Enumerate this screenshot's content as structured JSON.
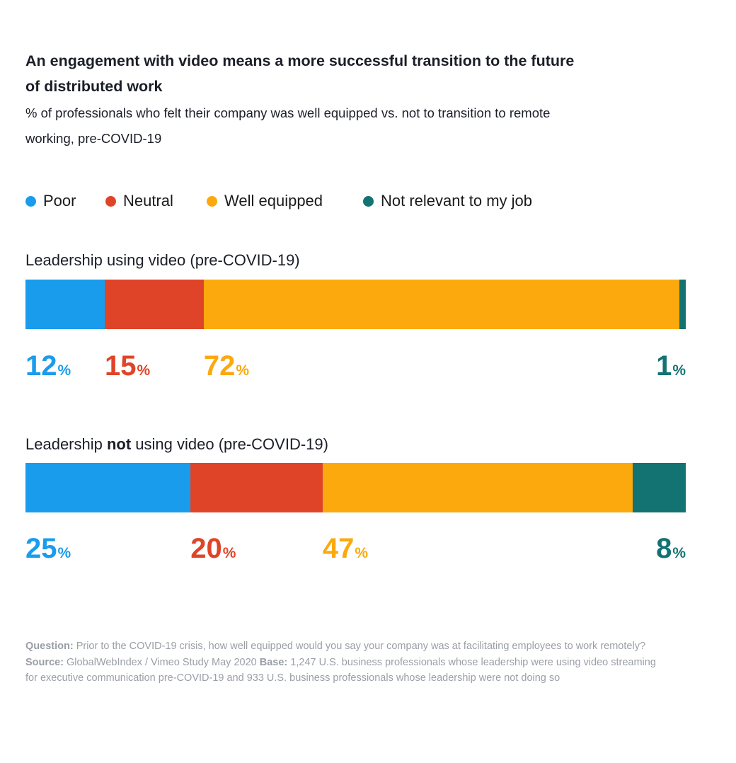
{
  "title": "An engagement with video means a more successful transition to the future of distributed work",
  "subtitle": "% of professionals who felt their company was well equipped vs. not to transition to remote working, pre-COVID-19",
  "legend": [
    {
      "label": "Poor",
      "color": "#1a9ced"
    },
    {
      "label": "Neutral",
      "color": "#e04428"
    },
    {
      "label": "Well equipped",
      "color": "#fba90d"
    },
    {
      "label": "Not relevant to my job",
      "color": "#137373"
    }
  ],
  "unit": "%",
  "groups": {
    "g0": {
      "label_pre": "Leadership using video (pre-COVID-19)",
      "label_strong": "",
      "label_post": ""
    },
    "g1": {
      "label_pre": "Leadership ",
      "label_strong": "not",
      "label_post": " using video (pre-COVID-19)"
    }
  },
  "chart_data": {
    "type": "bar",
    "orientation": "horizontal-stacked-100",
    "title": "An engagement with video means a more successful transition to the future of distributed work",
    "subtitle": "% of professionals who felt their company was well equipped vs. not to transition to remote working, pre-COVID-19",
    "categories": [
      "Leadership using video (pre-COVID-19)",
      "Leadership not using video (pre-COVID-19)"
    ],
    "series": [
      {
        "name": "Poor",
        "values": [
          12,
          25
        ],
        "color": "#1a9ced"
      },
      {
        "name": "Neutral",
        "values": [
          15,
          20
        ],
        "color": "#e04428"
      },
      {
        "name": "Well equipped",
        "values": [
          72,
          47
        ],
        "color": "#fba90d"
      },
      {
        "name": "Not relevant to my job",
        "values": [
          1,
          8
        ],
        "color": "#137373"
      }
    ],
    "value_unit": "%",
    "xlim": [
      0,
      100
    ],
    "legend_position": "top-left",
    "grid": false
  },
  "footnote": {
    "question_label": "Question:",
    "question_text": " Prior to the COVID-19 crisis, how well equipped would you say your company was at facilitating employees to work remotely? ",
    "source_label": "Source:",
    "source_text": " GlobalWebIndex / Vimeo Study May 2020 ",
    "base_label": "Base:",
    "base_text": " 1,247 U.S. business professionals whose leadership were using video streaming for executive communication pre-COVID-19 and 933 U.S. business professionals whose leadership were not doing so"
  }
}
